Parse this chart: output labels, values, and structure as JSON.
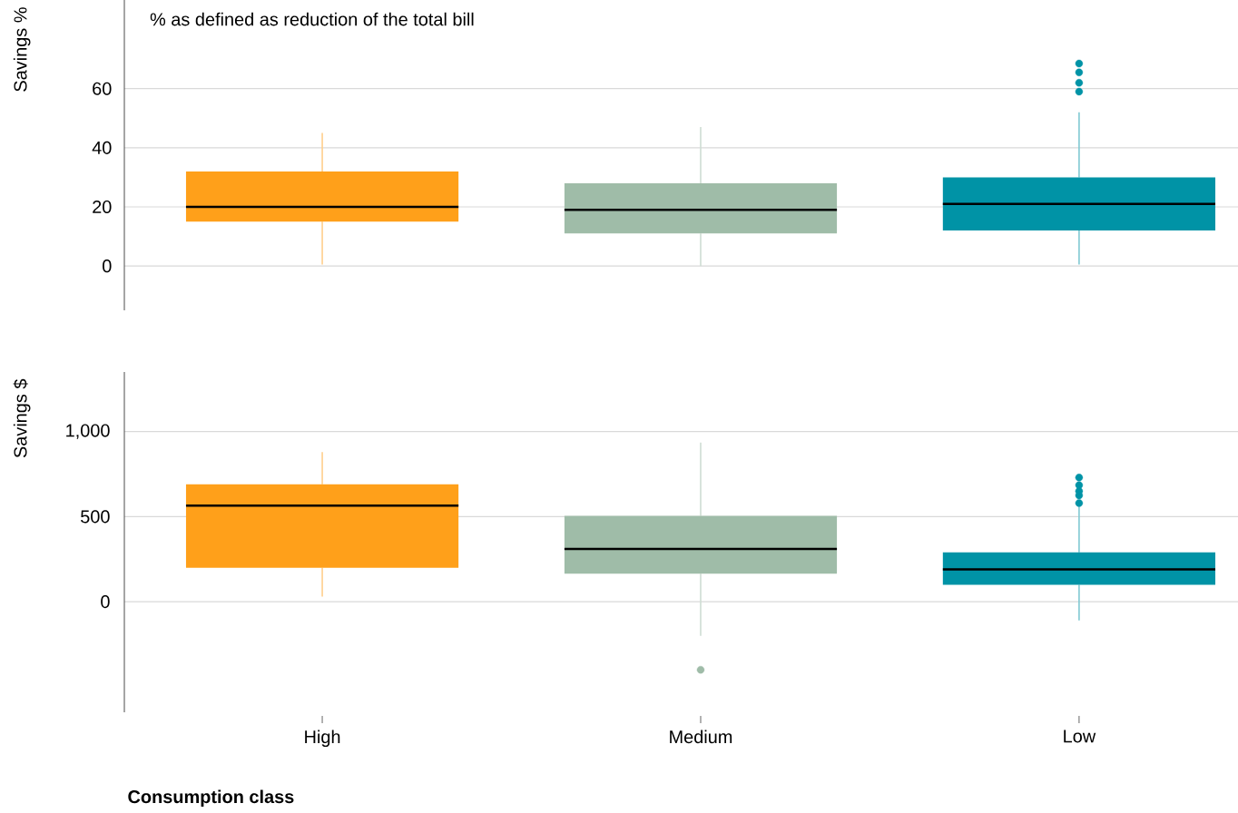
{
  "chart_data": [
    {
      "type": "box",
      "ylabel": "Savings %",
      "colors": [
        "#ffa01a",
        "#9fbca8",
        "#0093a6"
      ],
      "boxes": [
        {
          "low": 0.5,
          "q1": 15,
          "median": 20,
          "q3": 32,
          "high": 45
        },
        {
          "low": 0,
          "q1": 11,
          "median": 19,
          "q3": 28,
          "high": 47
        },
        {
          "low": 0.5,
          "q1": 12,
          "median": 21,
          "q3": 30,
          "high": 52,
          "outliers": [
            59,
            62,
            65.5,
            68.5
          ]
        }
      ],
      "ylim": [
        -15,
        90
      ],
      "yticks": [
        0,
        20,
        40,
        60
      ],
      "grid": "y",
      "tick_labels": "y",
      "annotations": [
        "% as defined as reduction of the total bill"
      ]
    },
    {
      "type": "box",
      "ylabel": "Savings $",
      "xlabel": "Consumption class",
      "categories": [
        "High",
        "Medium",
        "Low"
      ],
      "colors": [
        "#ffa01a",
        "#9fbca8",
        "#0093a6"
      ],
      "boxes": [
        {
          "low": 30,
          "q1": 200,
          "median": 565,
          "q3": 690,
          "high": 880
        },
        {
          "low": -200,
          "q1": 165,
          "median": 310,
          "q3": 505,
          "high": 935,
          "outliers": [
            -400
          ]
        },
        {
          "low": -110,
          "q1": 100,
          "median": 190,
          "q3": 290,
          "high": 560,
          "outliers": [
            580,
            625,
            650,
            685,
            730
          ]
        }
      ],
      "ylim": [
        -650,
        1350
      ],
      "yticks": [
        0,
        500,
        {
          "value": 1000,
          "label": "1,000"
        }
      ],
      "grid": "y"
    }
  ]
}
